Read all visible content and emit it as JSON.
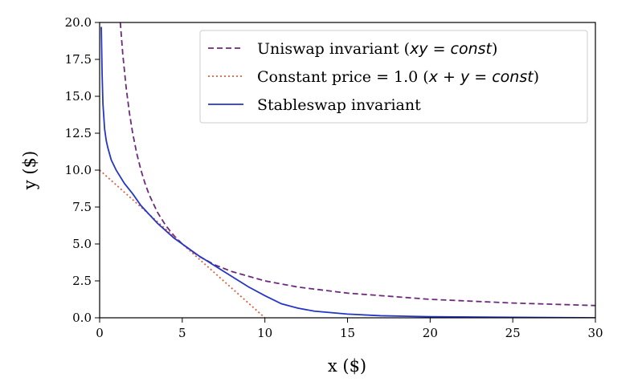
{
  "chart_data": {
    "type": "line",
    "xlabel": "x ($)",
    "ylabel": "y ($)",
    "xlim": [
      0,
      30
    ],
    "ylim": [
      0,
      20
    ],
    "x_ticks": [
      "0",
      "5",
      "10",
      "15",
      "20",
      "25",
      "30"
    ],
    "y_ticks": [
      "0.0",
      "2.5",
      "5.0",
      "7.5",
      "10.0",
      "12.5",
      "15.0",
      "17.5",
      "20.0"
    ],
    "grid": false,
    "legend_position": "top-right",
    "series": [
      {
        "name_text": "Uniswap invariant (",
        "name_math": "xy = const",
        "name_close": ")",
        "color": "#6b2a7a",
        "style": "dashed",
        "x": [
          1.25,
          1.4,
          1.6,
          1.8,
          2.0,
          2.25,
          2.5,
          2.75,
          3.0,
          3.5,
          4.0,
          4.5,
          5.0,
          6.0,
          7.0,
          8.0,
          10.0,
          12.0,
          15.0,
          20.0,
          25.0,
          30.0
        ],
        "y": [
          20.0,
          17.86,
          15.63,
          13.89,
          12.5,
          11.11,
          10.0,
          9.09,
          8.33,
          7.14,
          6.25,
          5.56,
          5.0,
          4.17,
          3.57,
          3.13,
          2.5,
          2.08,
          1.67,
          1.25,
          1.0,
          0.83
        ]
      },
      {
        "name_text": "Constant price = 1.0 (",
        "name_math": "x + y = const",
        "name_close": ")",
        "color": "#d9603b",
        "style": "dotted",
        "x": [
          0,
          10
        ],
        "y": [
          10,
          0
        ]
      },
      {
        "name_text": "Stableswap invariant",
        "name_math": "",
        "name_close": "",
        "color": "#2536c4",
        "style": "solid",
        "x": [
          0.1,
          0.15,
          0.2,
          0.3,
          0.4,
          0.5,
          0.7,
          1.0,
          1.5,
          2.0,
          2.5,
          3.0,
          3.5,
          4.0,
          4.5,
          5.0,
          5.5,
          6.0,
          7.0,
          8.0,
          9.0,
          10.0,
          11.0,
          12.0,
          13.0,
          15.0,
          17.0,
          20.0,
          25.0,
          30.0
        ],
        "y": [
          19.7,
          16.5,
          14.5,
          12.8,
          12.0,
          11.5,
          10.7,
          10.0,
          9.1,
          8.4,
          7.6,
          7.0,
          6.4,
          5.9,
          5.4,
          5.0,
          4.6,
          4.2,
          3.5,
          2.8,
          2.1,
          1.5,
          0.95,
          0.65,
          0.45,
          0.25,
          0.14,
          0.07,
          0.03,
          0.0
        ]
      }
    ]
  }
}
